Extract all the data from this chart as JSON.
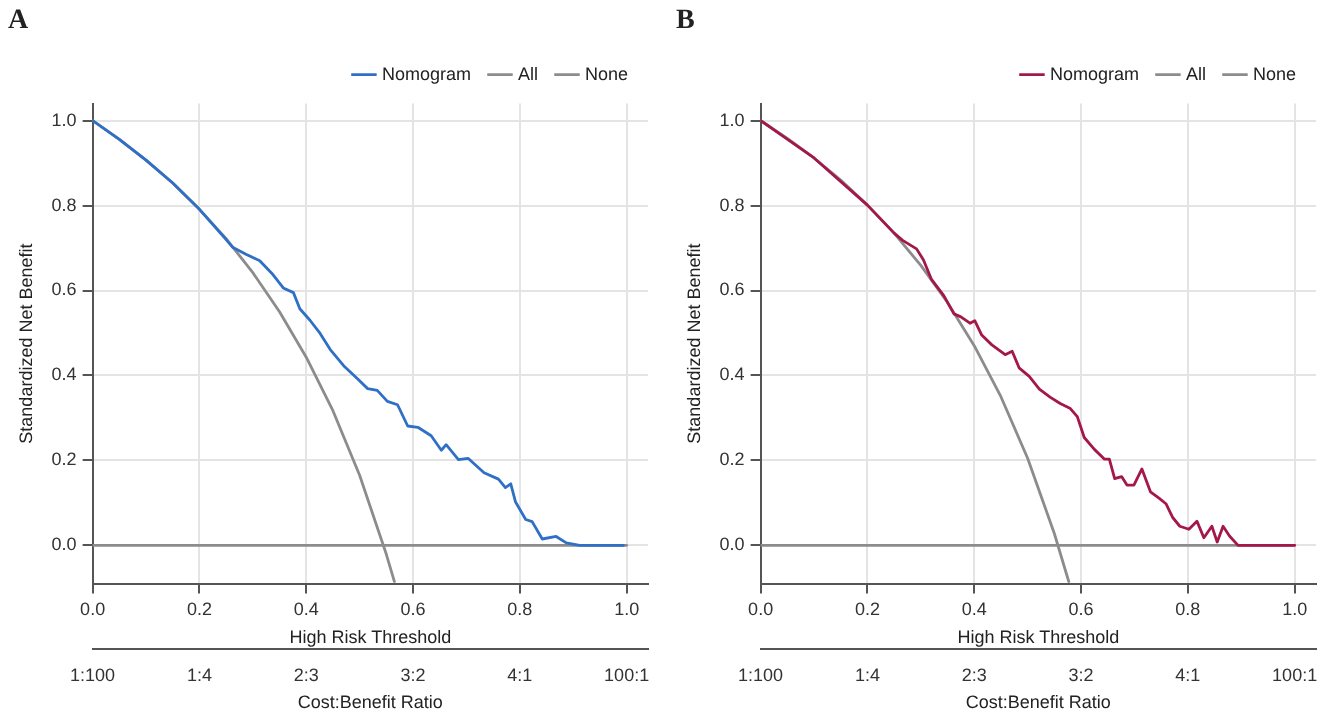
{
  "chart_data": [
    {
      "type": "line",
      "title": "A",
      "xlabel": "High Risk Threshold",
      "ylabel": "Standardized Net Benefit",
      "x2label": "Cost:Benefit Ratio",
      "xlim": [
        0,
        1.04
      ],
      "ylim": [
        -0.09,
        1.04
      ],
      "xticks": [
        {
          "value": 0,
          "label": "0.0"
        },
        {
          "value": 0.2,
          "label": "0.2"
        },
        {
          "value": 0.4,
          "label": "0.4"
        },
        {
          "value": 0.6,
          "label": "0.6"
        },
        {
          "value": 0.8,
          "label": "0.8"
        },
        {
          "value": 1,
          "label": "1.0"
        }
      ],
      "yticks": [
        {
          "value": 0,
          "label": "0.0"
        },
        {
          "value": 0.2,
          "label": "0.2"
        },
        {
          "value": 0.4,
          "label": "0.4"
        },
        {
          "value": 0.6,
          "label": "0.6"
        },
        {
          "value": 0.8,
          "label": "0.8"
        },
        {
          "value": 1,
          "label": "1.0"
        }
      ],
      "annotations": [
        "1:100",
        "1:4",
        "2:3",
        "3:2",
        "4:1",
        "100:1"
      ],
      "grid": true,
      "legend": "top right",
      "marker": "none",
      "line_style": "solid",
      "series": [
        {
          "name": "Nomogram",
          "color": "#2f6fc6",
          "x": [
            0,
            0.05,
            0.1,
            0.15,
            0.2,
            0.25,
            0.262,
            0.288,
            0.313,
            0.338,
            0.357,
            0.376,
            0.388,
            0.407,
            0.426,
            0.445,
            0.47,
            0.496,
            0.515,
            0.533,
            0.552,
            0.571,
            0.59,
            0.609,
            0.634,
            0.653,
            0.662,
            0.685,
            0.703,
            0.733,
            0.76,
            0.773,
            0.783,
            0.792,
            0.811,
            0.823,
            0.842,
            0.868,
            0.887,
            0.912,
            0.994
          ],
          "values": [
            1,
            0.956,
            0.907,
            0.853,
            0.791,
            0.72,
            0.702,
            0.685,
            0.67,
            0.637,
            0.606,
            0.595,
            0.557,
            0.53,
            0.499,
            0.461,
            0.423,
            0.392,
            0.369,
            0.365,
            0.339,
            0.331,
            0.281,
            0.278,
            0.258,
            0.224,
            0.237,
            0.202,
            0.205,
            0.171,
            0.156,
            0.136,
            0.145,
            0.102,
            0.061,
            0.056,
            0.015,
            0.021,
            0.006,
            0,
            0
          ]
        },
        {
          "name": "All",
          "color": "#8c8c8c",
          "x": [
            0,
            0.05,
            0.1,
            0.15,
            0.2,
            0.25,
            0.3,
            0.35,
            0.4,
            0.45,
            0.5,
            0.55,
            0.565
          ],
          "values": [
            1,
            0.956,
            0.907,
            0.853,
            0.791,
            0.722,
            0.642,
            0.55,
            0.443,
            0.317,
            0.165,
            -0.021,
            -0.085
          ]
        },
        {
          "name": "None",
          "color": "#8c8c8c",
          "x": [
            0,
            1
          ],
          "values": [
            0,
            0
          ]
        }
      ]
    },
    {
      "type": "line",
      "title": "B",
      "xlabel": "High Risk Threshold",
      "ylabel": "Standardized Net Benefit",
      "x2label": "Cost:Benefit Ratio",
      "xlim": [
        0,
        1.04
      ],
      "ylim": [
        -0.09,
        1.04
      ],
      "xticks": [
        {
          "value": 0,
          "label": "0.0"
        },
        {
          "value": 0.2,
          "label": "0.2"
        },
        {
          "value": 0.4,
          "label": "0.4"
        },
        {
          "value": 0.6,
          "label": "0.6"
        },
        {
          "value": 0.8,
          "label": "0.8"
        },
        {
          "value": 1,
          "label": "1.0"
        }
      ],
      "yticks": [
        {
          "value": 0,
          "label": "0.0"
        },
        {
          "value": 0.2,
          "label": "0.2"
        },
        {
          "value": 0.4,
          "label": "0.4"
        },
        {
          "value": 0.6,
          "label": "0.6"
        },
        {
          "value": 0.8,
          "label": "0.8"
        },
        {
          "value": 1,
          "label": "1.0"
        }
      ],
      "annotations": [
        "1:100",
        "1:4",
        "2:3",
        "3:2",
        "4:1",
        "100:1"
      ],
      "grid": true,
      "legend": "top right",
      "marker": "none",
      "line_style": "solid",
      "series": [
        {
          "name": "Nomogram",
          "color": "#a3174a",
          "x": [
            0,
            0.1,
            0.2,
            0.25,
            0.266,
            0.292,
            0.305,
            0.32,
            0.343,
            0.362,
            0.375,
            0.392,
            0.401,
            0.414,
            0.433,
            0.458,
            0.471,
            0.484,
            0.503,
            0.522,
            0.542,
            0.561,
            0.58,
            0.593,
            0.606,
            0.625,
            0.644,
            0.653,
            0.663,
            0.676,
            0.686,
            0.699,
            0.714,
            0.73,
            0.746,
            0.759,
            0.772,
            0.785,
            0.802,
            0.817,
            0.83,
            0.845,
            0.855,
            0.866,
            0.878,
            0.894,
            1
          ],
          "values": [
            1,
            0.912,
            0.801,
            0.735,
            0.718,
            0.698,
            0.672,
            0.626,
            0.588,
            0.545,
            0.538,
            0.523,
            0.529,
            0.495,
            0.472,
            0.449,
            0.457,
            0.418,
            0.398,
            0.368,
            0.349,
            0.334,
            0.322,
            0.303,
            0.254,
            0.226,
            0.203,
            0.203,
            0.157,
            0.162,
            0.142,
            0.142,
            0.18,
            0.126,
            0.111,
            0.098,
            0.065,
            0.045,
            0.038,
            0.057,
            0.018,
            0.045,
            0.008,
            0.045,
            0.022,
            0,
            0
          ]
        },
        {
          "name": "All",
          "color": "#8c8c8c",
          "x": [
            0,
            0.05,
            0.1,
            0.15,
            0.2,
            0.25,
            0.3,
            0.35,
            0.4,
            0.45,
            0.5,
            0.55,
            0.577
          ],
          "values": [
            1,
            0.958,
            0.912,
            0.86,
            0.801,
            0.735,
            0.659,
            0.572,
            0.47,
            0.35,
            0.205,
            0.028,
            -0.085
          ]
        },
        {
          "name": "None",
          "color": "#8c8c8c",
          "x": [
            0,
            1
          ],
          "values": [
            0,
            0
          ]
        }
      ]
    }
  ]
}
